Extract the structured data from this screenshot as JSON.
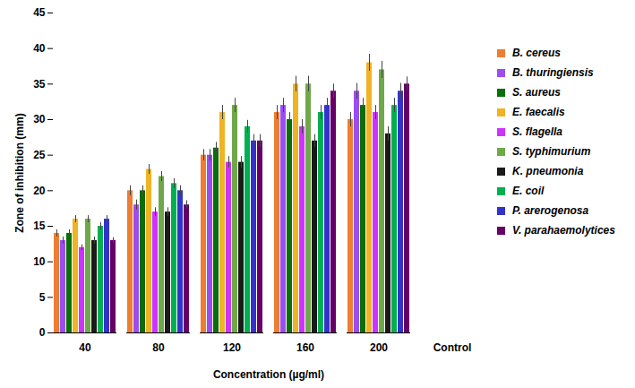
{
  "chart_data": {
    "type": "bar",
    "x_label": "Concentration (µg/ml)",
    "y_label": "Zone of inhibition (mm)",
    "categories": [
      "40",
      "80",
      "120",
      "160",
      "200",
      "Control"
    ],
    "ylim": [
      0,
      45
    ],
    "yticks": [
      0,
      5,
      10,
      15,
      20,
      25,
      30,
      35,
      40,
      45
    ],
    "legend": "right",
    "series": [
      {
        "name": "B. cereus",
        "color": "#ED7D31",
        "values": [
          14,
          20,
          25,
          31,
          30,
          null
        ],
        "errors": [
          0.5,
          0.7,
          0.8,
          1.0,
          1.0,
          null
        ]
      },
      {
        "name": "B. thuringiensis",
        "color": "#9B4DF0",
        "values": [
          13,
          18,
          25,
          32,
          34,
          null
        ],
        "errors": [
          0.5,
          0.7,
          0.8,
          1.0,
          1.1,
          null
        ]
      },
      {
        "name": "S. aureus",
        "color": "#0A6E0A",
        "values": [
          14,
          20,
          26,
          30,
          32,
          null
        ],
        "errors": [
          0.5,
          0.7,
          0.8,
          1.0,
          1.0,
          null
        ]
      },
      {
        "name": "E.  faecalis",
        "color": "#F0B323",
        "values": [
          16,
          23,
          31,
          35,
          38,
          null
        ],
        "errors": [
          0.5,
          0.7,
          1.0,
          1.1,
          1.2,
          null
        ]
      },
      {
        "name": "S. flagella",
        "color": "#CC33FF",
        "values": [
          12,
          17,
          24,
          29,
          31,
          null
        ],
        "errors": [
          0.4,
          0.6,
          0.8,
          1.0,
          1.0,
          null
        ]
      },
      {
        "name": "S. typhimurium",
        "color": "#6FA84A",
        "values": [
          16,
          22,
          32,
          35,
          37,
          null
        ],
        "errors": [
          0.5,
          0.7,
          1.0,
          1.1,
          1.2,
          null
        ]
      },
      {
        "name": "K. pneumonia",
        "color": "#1A1A1A",
        "values": [
          13,
          17,
          24,
          27,
          28,
          null
        ],
        "errors": [
          0.5,
          0.6,
          0.8,
          0.9,
          1.0,
          null
        ]
      },
      {
        "name": "E. coil",
        "color": "#00B050",
        "values": [
          15,
          21,
          29,
          31,
          32,
          null
        ],
        "errors": [
          0.5,
          0.7,
          0.9,
          1.0,
          1.0,
          null
        ]
      },
      {
        "name": "P. arerogenosa",
        "color": "#3333CC",
        "values": [
          16,
          20,
          27,
          32,
          34,
          null
        ],
        "errors": [
          0.5,
          0.7,
          0.9,
          1.0,
          1.1,
          null
        ]
      },
      {
        "name": "V. parahaemolytices",
        "color": "#660066",
        "values": [
          13,
          18,
          27,
          34,
          35,
          null
        ],
        "errors": [
          0.4,
          0.6,
          0.9,
          1.0,
          1.0,
          null
        ]
      }
    ]
  }
}
